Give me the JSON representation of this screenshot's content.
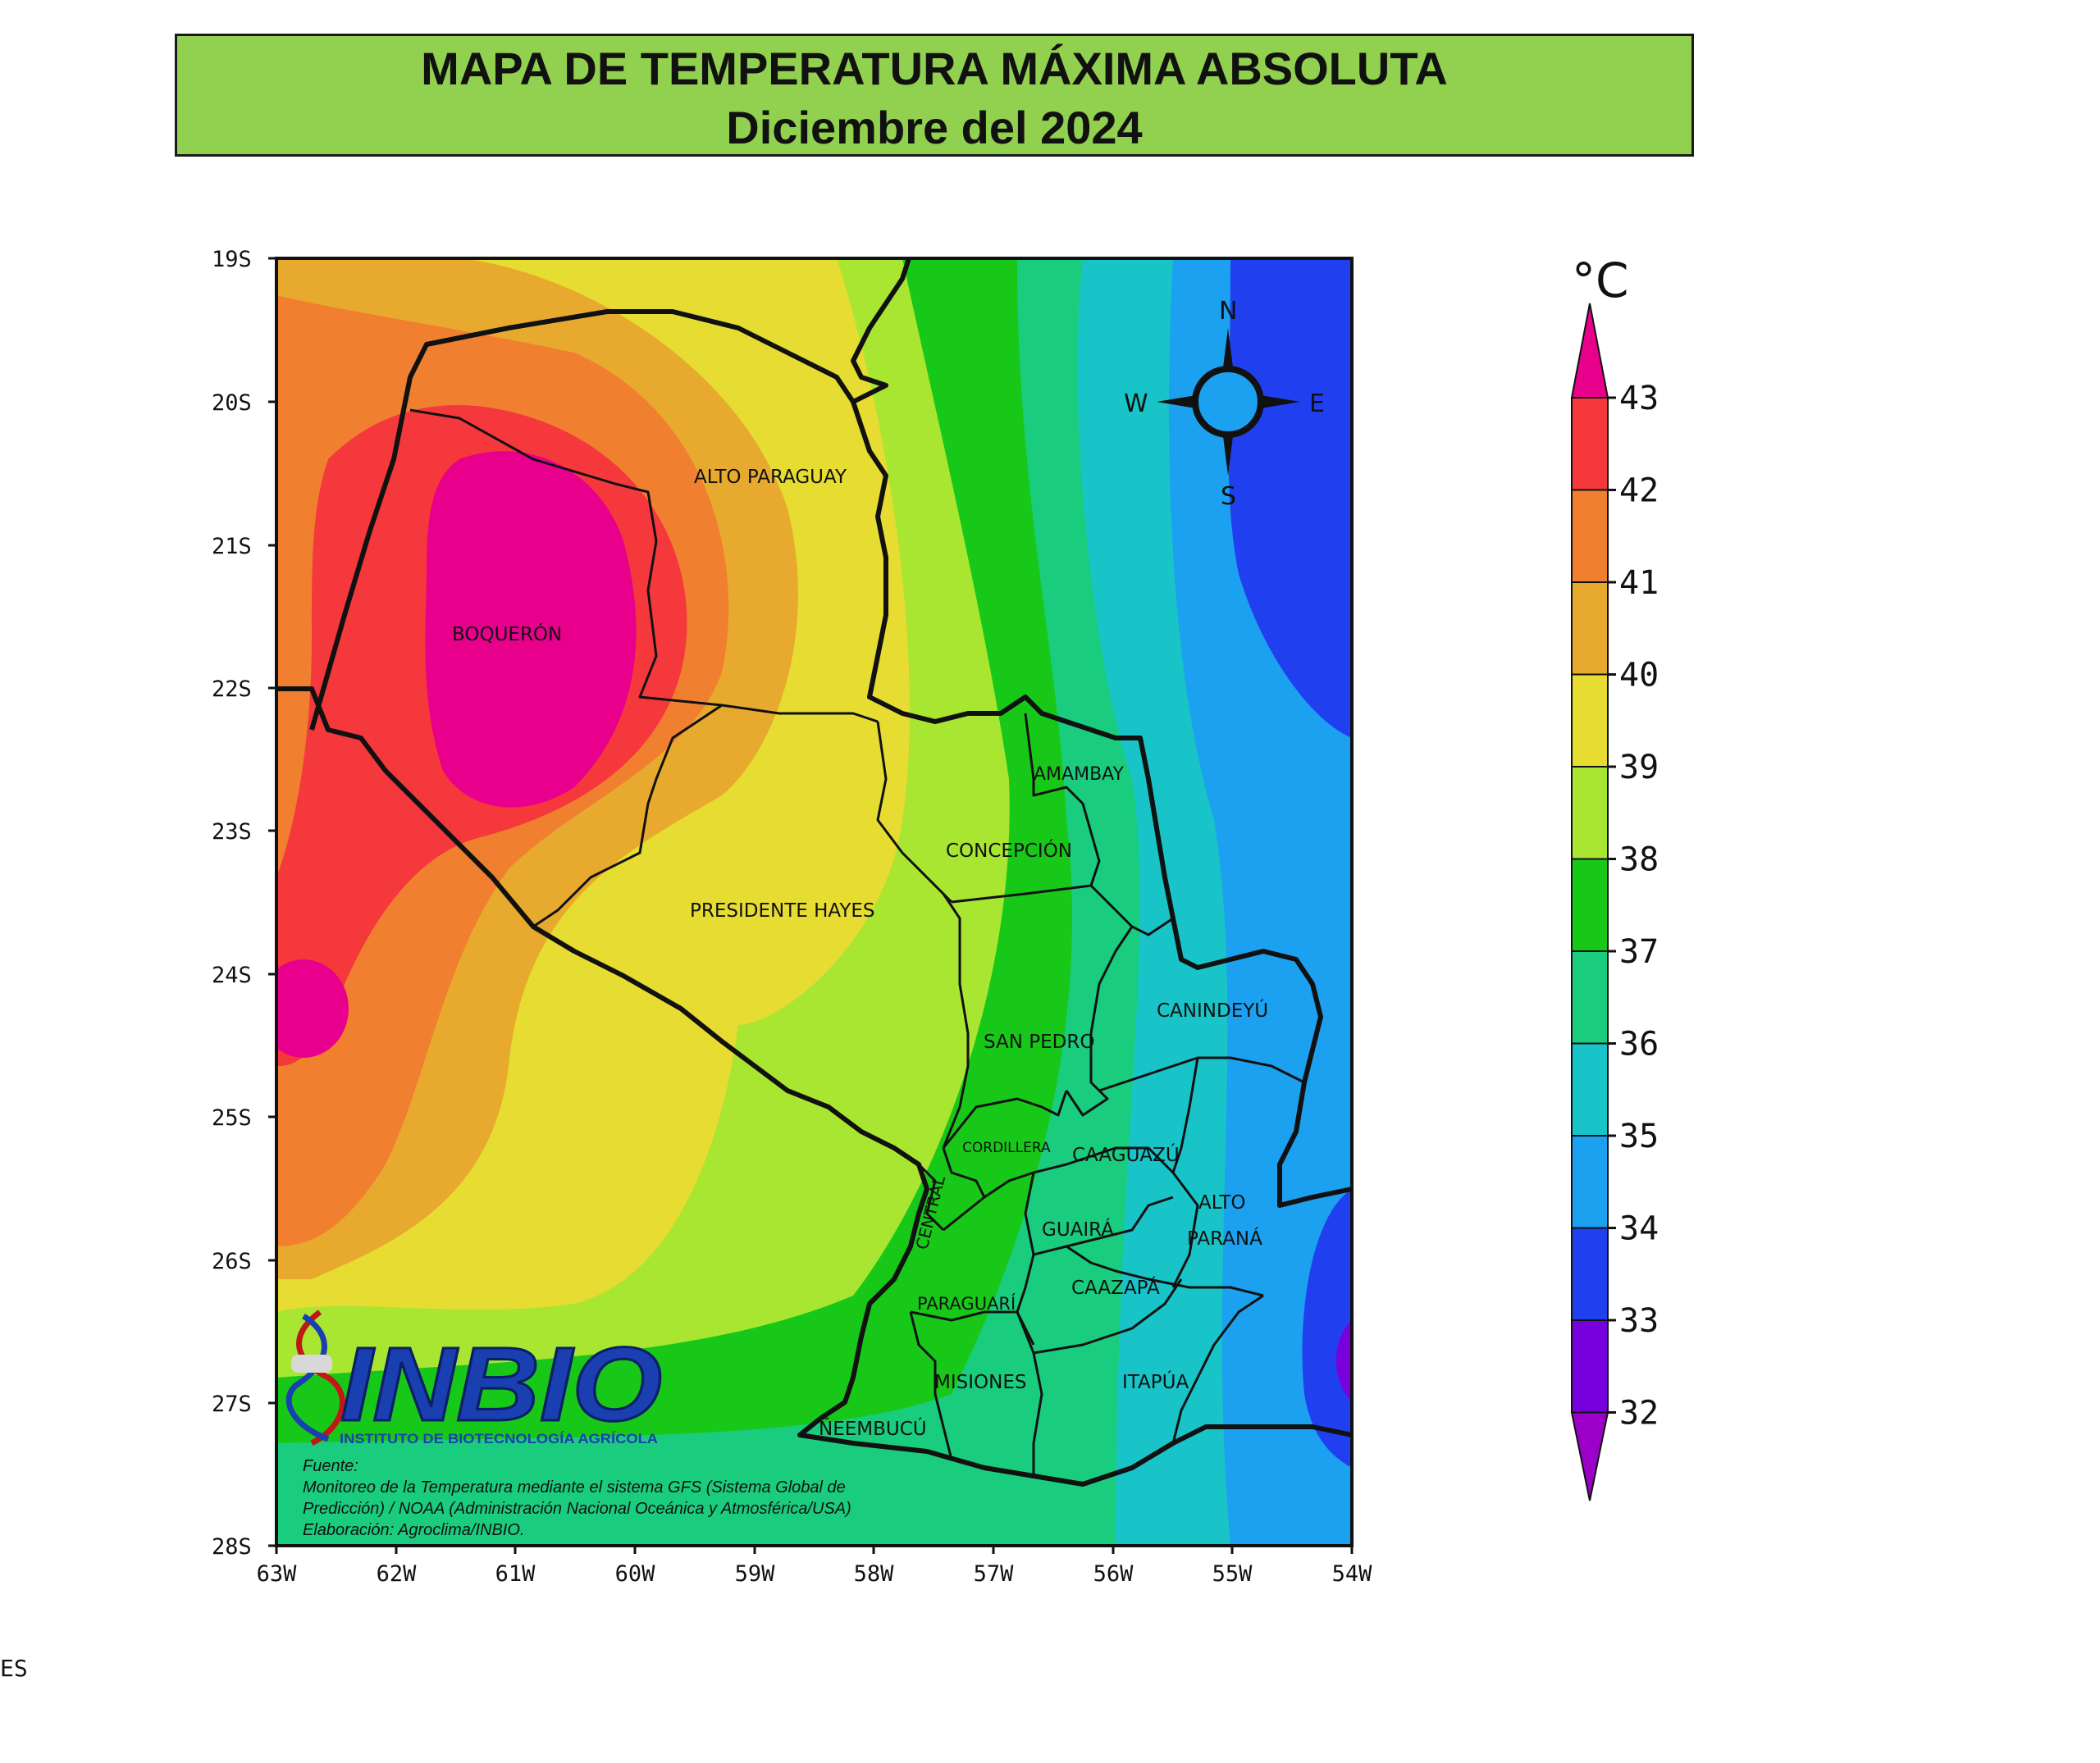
{
  "title": {
    "line1": "MAPA DE TEMPERATURA MÁXIMA ABSOLUTA",
    "line2": "Diciembre del 2024"
  },
  "colorbar": {
    "unit": "°C",
    "ticks": [
      "43",
      "42",
      "41",
      "40",
      "39",
      "38",
      "37",
      "36",
      "35",
      "34",
      "33",
      "32"
    ],
    "colors": [
      "#e8008c",
      "#f5383c",
      "#f08030",
      "#e8aa2e",
      "#e6dc32",
      "#a8e632",
      "#18c818",
      "#1acd7e",
      "#18c4c8",
      "#1ca0f0",
      "#2040f0",
      "#7800dc",
      "#9c00c8"
    ]
  },
  "axes": {
    "lat_labels": [
      "19S",
      "20S",
      "21S",
      "22S",
      "23S",
      "24S",
      "25S",
      "26S",
      "27S",
      "28S"
    ],
    "lon_labels": [
      "63W",
      "62W",
      "61W",
      "60W",
      "59W",
      "58W",
      "57W",
      "56W",
      "55W",
      "54W"
    ]
  },
  "compass": {
    "n": "N",
    "s": "S",
    "e": "E",
    "w": "W"
  },
  "regions": [
    {
      "name": "ALTO PARAGUAY"
    },
    {
      "name": "BOQUERÓN"
    },
    {
      "name": "AMAMBAY"
    },
    {
      "name": "CONCEPCIÓN"
    },
    {
      "name": "PRESIDENTE HAYES"
    },
    {
      "name": "CANINDEYÚ"
    },
    {
      "name": "SAN PEDRO"
    },
    {
      "name": "CORDILLERA"
    },
    {
      "name": "CAAGUAZÚ"
    },
    {
      "name": "ALTO"
    },
    {
      "name": "PARANÁ"
    },
    {
      "name": "CENTRAL"
    },
    {
      "name": "GUAIRÁ"
    },
    {
      "name": "CAAZAPÁ"
    },
    {
      "name": "PARAGUARÍ"
    },
    {
      "name": "MISIONES"
    },
    {
      "name": "ITAPÚA"
    },
    {
      "name": "ÑEEMBUCÚ"
    }
  ],
  "logo": {
    "name": "INBIO",
    "subtitle": "INSTITUTO DE BIOTECNOLOGÍA AGRÍCOLA"
  },
  "source": {
    "line1": "Fuente:",
    "line2": "Monitoreo de la Temperatura mediante el sistema GFS (Sistema Global de",
    "line3": "Predicción) / NOAA (Administración Nacional Oceánica y Atmosférica/USA)",
    "line4": "Elaboración: Agroclima/INBIO."
  },
  "stray_text": "ES"
}
